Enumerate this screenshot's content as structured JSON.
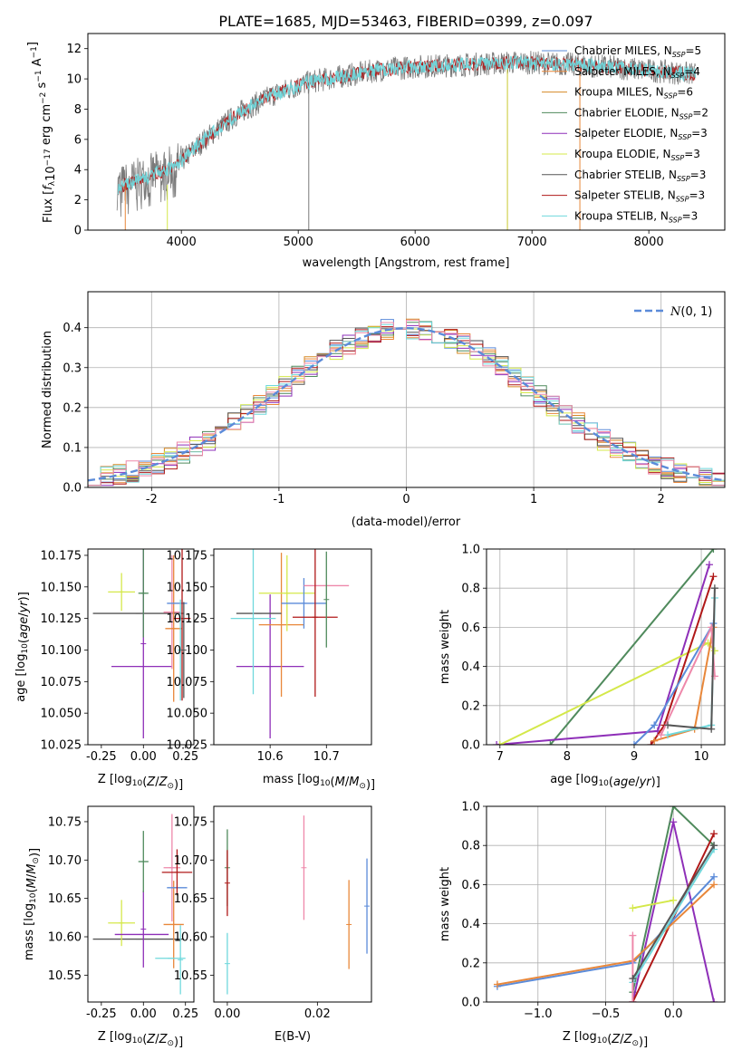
{
  "figure": {
    "title": "PLATE=1685, MJD=53463, FIBERID=0399, z=0.097"
  },
  "colors": {
    "Chabrier MILES": "#5b8bd9",
    "Salpeter MILES": "#e8873a",
    "Kroupa MILES": "#d68a26",
    "Chabrier ELODIE": "#4f8a5c",
    "Salpeter ELODIE": "#8e2fb8",
    "Kroupa ELODIE": "#d4e84a",
    "Chabrier STELIB": "#555555",
    "Salpeter STELIB": "#b01818",
    "Kroupa STELIB": "#6fd8dc",
    "pink": "#ee88aa"
  },
  "chart_data": [
    {
      "id": "spectrum",
      "type": "line",
      "xlabel": "wavelength [Angstrom, rest frame]",
      "ylabel": "Flux [f_λ 10^-17 erg cm^-2 s^-1 A^-1]",
      "xlim": [
        3200,
        8650
      ],
      "ylim": [
        0,
        13
      ],
      "xticks": [
        4000,
        5000,
        6000,
        7000,
        8000
      ],
      "yticks": [
        0,
        2,
        4,
        6,
        8,
        10,
        12
      ],
      "legend_position": "right",
      "series": [
        {
          "name": "Chabrier MILES, N_SSP=5",
          "label": "Chabrier MILES, N",
          "sub": "SSP",
          "tail": "=5",
          "color": "#5b8bd9"
        },
        {
          "name": "Salpeter MILES, N_SSP=4",
          "label": "Salpeter MILES, N",
          "sub": "SSP",
          "tail": "=4",
          "color": "#e8873a"
        },
        {
          "name": "Kroupa MILES, N_SSP=6",
          "label": "Kroupa MILES, N",
          "sub": "SSP",
          "tail": "=6",
          "color": "#d68a26"
        },
        {
          "name": "Chabrier ELODIE, N_SSP=2",
          "label": "Chabrier ELODIE, N",
          "sub": "SSP",
          "tail": "=2",
          "color": "#4f8a5c"
        },
        {
          "name": "Salpeter ELODIE, N_SSP=3",
          "label": "Salpeter ELODIE, N",
          "sub": "SSP",
          "tail": "=3",
          "color": "#8e2fb8"
        },
        {
          "name": "Kroupa ELODIE, N_SSP=3",
          "label": "Kroupa ELODIE, N",
          "sub": "SSP",
          "tail": "=3",
          "color": "#d4e84a"
        },
        {
          "name": "Chabrier STELIB, N_SSP=3",
          "label": "Chabrier STELIB, N",
          "sub": "SSP",
          "tail": "=3",
          "color": "#555555"
        },
        {
          "name": "Salpeter STELIB, N_SSP=3",
          "label": "Salpeter STELIB, N",
          "sub": "SSP",
          "tail": "=3",
          "color": "#b01818"
        },
        {
          "name": "Kroupa STELIB, N_SSP=3",
          "label": "Kroupa STELIB, N",
          "sub": "SSP",
          "tail": "=3",
          "color": "#6fd8dc"
        }
      ],
      "continuum_x": [
        3450,
        3700,
        3950,
        4200,
        4500,
        4800,
        5100,
        5400,
        5700,
        6000,
        6300,
        6600,
        6900,
        7200,
        7500,
        7800,
        8100,
        8400
      ],
      "continuum_y": [
        2.8,
        3.5,
        4.2,
        6.0,
        7.8,
        9.0,
        9.8,
        10.2,
        10.6,
        10.8,
        10.9,
        11.0,
        11.1,
        11.0,
        10.9,
        10.7,
        10.5,
        10.3
      ]
    },
    {
      "id": "residual-histogram",
      "type": "histogram",
      "xlabel": "(data-model)/error",
      "ylabel": "Normed distribution",
      "xlim": [
        -2.5,
        2.5
      ],
      "ylim": [
        0,
        0.49
      ],
      "xticks": [
        -2,
        -1,
        0,
        1,
        2
      ],
      "yticks": [
        0.0,
        0.1,
        0.2,
        0.3,
        0.4
      ],
      "grid": true,
      "reference_curve": {
        "name": "N(0,1)",
        "mu": 0,
        "sigma": 1,
        "color": "#5b8bd9",
        "style": "dashed"
      },
      "legend_position": "top-right"
    },
    {
      "id": "age-vs-Z",
      "type": "errorbar",
      "xlabel": "Z [log10(Z/Z_sun)]",
      "ylabel": "age [log10(age/yr)]",
      "xlim": [
        -0.33,
        0.3
      ],
      "ylim": [
        10.025,
        10.18
      ],
      "xticks": [
        -0.25,
        0.0,
        0.25
      ],
      "yticks": [
        10.025,
        10.05,
        10.075,
        10.1,
        10.125,
        10.15,
        10.175
      ],
      "points": [
        {
          "x": -0.03,
          "xerr": 0.27,
          "y": 10.129,
          "yerr": 0.0,
          "color": "#555555"
        },
        {
          "x": -0.13,
          "xerr": 0.08,
          "y": 10.146,
          "yerr": 0.015,
          "color": "#d4e84a"
        },
        {
          "x": -0.01,
          "xerr": 0.18,
          "y": 10.087,
          "yerr": 0.0,
          "color": "#8e2fb8"
        },
        {
          "x": 0.0,
          "xerr": 0.0,
          "y": 10.105,
          "yerr": 0.075,
          "color": "#8e2fb8"
        },
        {
          "x": 0.0,
          "xerr": 0.03,
          "y": 10.145,
          "yerr": 0.035,
          "color": "#4f8a5c"
        },
        {
          "x": 0.17,
          "xerr": 0.05,
          "y": 10.13,
          "yerr": 0.045,
          "color": "#ee88aa"
        },
        {
          "x": 0.18,
          "xerr": 0.05,
          "y": 10.117,
          "yerr": 0.058,
          "color": "#e8873a"
        },
        {
          "x": 0.2,
          "xerr": 0.06,
          "y": 10.137,
          "yerr": 0.0,
          "color": "#5b8bd9"
        },
        {
          "x": 0.23,
          "xerr": 0.05,
          "y": 10.125,
          "yerr": 0.065,
          "color": "#b01818"
        },
        {
          "x": 0.22,
          "xerr": 0.0,
          "y": 10.1,
          "yerr": 0.04,
          "color": "#6fd8dc"
        },
        {
          "x": 0.24,
          "xerr": 0.0,
          "y": 10.1,
          "yerr": 0.038,
          "color": "#555555"
        }
      ]
    },
    {
      "id": "age-vs-mass",
      "type": "errorbar",
      "xlabel": "mass [log10(M/M_sun)]",
      "ylabel": "",
      "xlim": [
        10.5,
        10.78
      ],
      "ylim": [
        10.025,
        10.18
      ],
      "xticks": [
        10.6,
        10.7
      ],
      "yticks": [
        10.025,
        10.05,
        10.075,
        10.1,
        10.125,
        10.15,
        10.175
      ],
      "points": [
        {
          "x": 10.6,
          "xerr": 0.06,
          "y": 10.087,
          "yerr": 0.057,
          "color": "#8e2fb8"
        },
        {
          "x": 10.62,
          "xerr": 0.04,
          "y": 10.12,
          "yerr": 0.057,
          "color": "#e8873a"
        },
        {
          "x": 10.63,
          "xerr": 0.05,
          "y": 10.145,
          "yerr": 0.03,
          "color": "#d4e84a"
        },
        {
          "x": 10.66,
          "xerr": 0.04,
          "y": 10.137,
          "yerr": 0.02,
          "color": "#5b8bd9"
        },
        {
          "x": 10.58,
          "xerr": 0.04,
          "y": 10.129,
          "yerr": 0.0,
          "color": "#555555"
        },
        {
          "x": 10.7,
          "xerr": 0.04,
          "y": 10.151,
          "yerr": 0.0,
          "color": "#ee88aa"
        },
        {
          "x": 10.68,
          "xerr": 0.04,
          "y": 10.126,
          "yerr": 0.063,
          "color": "#b01818"
        },
        {
          "x": 10.57,
          "xerr": 0.04,
          "y": 10.125,
          "yerr": 0.06,
          "color": "#6fd8dc"
        },
        {
          "x": 10.7,
          "xerr": 0.0,
          "y": 10.14,
          "yerr": 0.038,
          "color": "#4f8a5c"
        }
      ]
    },
    {
      "id": "mass-weight-vs-age",
      "type": "line",
      "xlabel": "age [log10(age/yr)]",
      "ylabel": "mass weight",
      "xlim": [
        6.8,
        10.35
      ],
      "ylim": [
        0,
        1
      ],
      "xticks": [
        7,
        8,
        9,
        10
      ],
      "yticks": [
        0.0,
        0.2,
        0.4,
        0.6,
        0.8,
        1.0
      ],
      "grid": true,
      "series": [
        {
          "color": "#4f8a5c",
          "x": [
            7.75,
            10.18
          ],
          "y": [
            0.0,
            1.0
          ]
        },
        {
          "color": "#8e2fb8",
          "x": [
            6.95,
            9.35,
            10.12
          ],
          "y": [
            0.0,
            0.07,
            0.92
          ]
        },
        {
          "color": "#d4e84a",
          "x": [
            7.0,
            10.1,
            10.2
          ],
          "y": [
            0.0,
            0.52,
            0.48
          ]
        },
        {
          "color": "#b01818",
          "x": [
            9.25,
            9.45,
            10.18
          ],
          "y": [
            0.0,
            0.1,
            0.86
          ]
        },
        {
          "color": "#5b8bd9",
          "x": [
            9.0,
            9.3,
            10.18
          ],
          "y": [
            0.0,
            0.1,
            0.62
          ]
        },
        {
          "color": "#e8873a",
          "x": [
            9.3,
            9.9,
            10.18
          ],
          "y": [
            0.02,
            0.08,
            0.6
          ]
        },
        {
          "color": "#6fd8dc",
          "x": [
            9.5,
            10.15,
            10.2
          ],
          "y": [
            0.05,
            0.1,
            0.75
          ]
        },
        {
          "color": "#ee88aa",
          "x": [
            9.4,
            10.15,
            10.2
          ],
          "y": [
            0.05,
            0.6,
            0.35
          ]
        },
        {
          "color": "#555555",
          "x": [
            9.5,
            10.15,
            10.2
          ],
          "y": [
            0.1,
            0.08,
            0.8
          ]
        }
      ]
    },
    {
      "id": "mass-vs-Z",
      "type": "errorbar",
      "xlabel": "Z [log10(Z/Z_sun)]",
      "ylabel": "mass [log10(M/M_sun)]",
      "xlim": [
        -0.33,
        0.3
      ],
      "ylim": [
        10.515,
        10.77
      ],
      "xticks": [
        -0.25,
        0.0,
        0.25
      ],
      "yticks": [
        10.55,
        10.6,
        10.65,
        10.7,
        10.75
      ],
      "points": [
        {
          "x": -0.03,
          "xerr": 0.27,
          "y": 10.597,
          "yerr": 0.0,
          "color": "#555555"
        },
        {
          "x": -0.13,
          "xerr": 0.08,
          "y": 10.618,
          "yerr": 0.03,
          "color": "#d4e84a"
        },
        {
          "x": -0.01,
          "xerr": 0.16,
          "y": 10.603,
          "yerr": 0.0,
          "color": "#8e2fb8"
        },
        {
          "x": 0.0,
          "xerr": 0.0,
          "y": 10.61,
          "yerr": 0.05,
          "color": "#8e2fb8"
        },
        {
          "x": 0.0,
          "xerr": 0.03,
          "y": 10.698,
          "yerr": 0.04,
          "color": "#4f8a5c"
        },
        {
          "x": 0.17,
          "xerr": 0.05,
          "y": 10.69,
          "yerr": 0.07,
          "color": "#ee88aa"
        },
        {
          "x": 0.18,
          "xerr": 0.06,
          "y": 10.616,
          "yerr": 0.057,
          "color": "#e8873a"
        },
        {
          "x": 0.2,
          "xerr": 0.06,
          "y": 10.664,
          "yerr": 0.0,
          "color": "#5b8bd9"
        },
        {
          "x": 0.2,
          "xerr": 0.09,
          "y": 10.684,
          "yerr": 0.03,
          "color": "#b01818"
        },
        {
          "x": 0.16,
          "xerr": 0.09,
          "y": 10.572,
          "yerr": 0.0,
          "color": "#6fd8dc"
        },
        {
          "x": 0.22,
          "xerr": 0.0,
          "y": 10.57,
          "yerr": 0.045,
          "color": "#6fd8dc"
        }
      ]
    },
    {
      "id": "mass-vs-EBV",
      "type": "errorbar",
      "xlabel": "E(B-V)",
      "ylabel": "",
      "xlim": [
        -0.003,
        0.032
      ],
      "ylim": [
        10.515,
        10.77
      ],
      "xticks": [
        0.0,
        0.02
      ],
      "yticks": [
        10.55,
        10.6,
        10.65,
        10.7,
        10.75
      ],
      "points": [
        {
          "x": 0.0,
          "xerr": 0.0,
          "y": 10.69,
          "yerr": 0.05,
          "color": "#4f8a5c"
        },
        {
          "x": 0.0,
          "xerr": 0.0,
          "y": 10.67,
          "yerr": 0.043,
          "color": "#b01818"
        },
        {
          "x": 0.0,
          "xerr": 0.0,
          "y": 10.565,
          "yerr": 0.04,
          "color": "#6fd8dc"
        },
        {
          "x": 0.017,
          "xerr": 0.0,
          "y": 10.69,
          "yerr": 0.068,
          "color": "#ee88aa"
        },
        {
          "x": 0.027,
          "xerr": 0.0,
          "y": 10.616,
          "yerr": 0.058,
          "color": "#e8873a"
        },
        {
          "x": 0.031,
          "xerr": 0.0,
          "y": 10.64,
          "yerr": 0.062,
          "color": "#5b8bd9"
        }
      ]
    },
    {
      "id": "mass-weight-vs-Z",
      "type": "line",
      "xlabel": "Z [log10(Z/Z_sun)]",
      "ylabel": "mass weight",
      "xlim": [
        -1.38,
        0.38
      ],
      "ylim": [
        0,
        1
      ],
      "xticks": [
        -1.0,
        -0.5,
        0.0
      ],
      "yticks": [
        0.0,
        0.2,
        0.4,
        0.6,
        0.8,
        1.0
      ],
      "grid": true,
      "series": [
        {
          "color": "#4f8a5c",
          "x": [
            -0.3,
            0.0,
            0.3
          ],
          "y": [
            0.05,
            1.0,
            0.8
          ]
        },
        {
          "color": "#8e2fb8",
          "x": [
            -0.3,
            0.0,
            0.3
          ],
          "y": [
            0.0,
            0.92,
            0.0
          ]
        },
        {
          "color": "#d4e84a",
          "x": [
            -0.3,
            0.0
          ],
          "y": [
            0.48,
            0.52
          ]
        },
        {
          "color": "#b01818",
          "x": [
            -0.3,
            0.3
          ],
          "y": [
            0.0,
            0.86
          ]
        },
        {
          "color": "#5b8bd9",
          "x": [
            -1.3,
            -0.3,
            0.3
          ],
          "y": [
            0.08,
            0.2,
            0.64
          ]
        },
        {
          "color": "#e8873a",
          "x": [
            -1.3,
            -0.3,
            0.3
          ],
          "y": [
            0.09,
            0.21,
            0.6
          ]
        },
        {
          "color": "#6fd8dc",
          "x": [
            -0.3,
            0.3
          ],
          "y": [
            0.1,
            0.78
          ]
        },
        {
          "color": "#ee88aa",
          "x": [
            -0.3,
            -0.3
          ],
          "y": [
            0.0,
            0.34
          ]
        },
        {
          "color": "#555555",
          "x": [
            -0.3,
            0.3
          ],
          "y": [
            0.12,
            0.8
          ]
        }
      ]
    }
  ]
}
